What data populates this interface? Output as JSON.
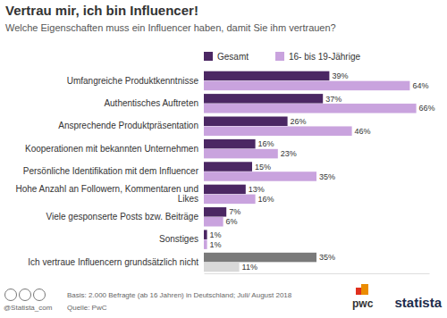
{
  "chart_data": {
    "type": "bar",
    "orientation": "horizontal",
    "title": "Vertrau mir, ich bin Influencer!",
    "subtitle": "Welche Eigenschaften muss ein Influencer haben, damit Sie ihm vertrauen?",
    "categories": [
      "Umfangreiche Produktkenntnisse",
      "Authentisches Auftreten",
      "Ansprechende Produktpräsentation",
      "Kooperationen mit bekannten Unternehmen",
      "Persönliche Identifikation mit dem Influencer",
      "Hohe Anzahl an Followern, Kommentaren und Likes",
      "Viele gesponserte Posts bzw. Beiträge",
      "Sonstiges",
      "Ich vertraue Influencern grundsätzlich nicht"
    ],
    "series": [
      {
        "name": "Gesamt",
        "color": "#4b2763",
        "colors": [
          "#4b2763",
          "#4b2763",
          "#4b2763",
          "#4b2763",
          "#4b2763",
          "#4b2763",
          "#4b2763",
          "#4b2763",
          "#7a7a7a"
        ],
        "values": [
          39,
          37,
          26,
          16,
          15,
          13,
          7,
          1,
          35
        ],
        "value_labels": [
          "39%",
          "37%",
          "26%",
          "16%",
          "15%",
          "13%",
          "7%",
          "1%",
          "35%"
        ]
      },
      {
        "name": "16- bis 19-Jährige",
        "color": "#c9a3de",
        "colors": [
          "#c9a3de",
          "#c9a3de",
          "#c9a3de",
          "#c9a3de",
          "#c9a3de",
          "#c9a3de",
          "#c9a3de",
          "#c9a3de",
          "#d9d9d9"
        ],
        "values": [
          64,
          66,
          46,
          23,
          35,
          16,
          6,
          1,
          11
        ],
        "value_labels": [
          "64%",
          "66%",
          "46%",
          "23%",
          "35%",
          "16%",
          "6%",
          "1%",
          "11%"
        ]
      }
    ],
    "xlim": [
      0,
      70
    ],
    "data_labels": true,
    "tick_labels": "y",
    "legend": "top",
    "annotations": [
      "Basis: 2.000 Befragte (ab 16 Jahren) in Deutschland; Juli/ August 2018",
      "Quelle: PwC",
      "@Statista_com",
      "pwc",
      "statista"
    ]
  }
}
